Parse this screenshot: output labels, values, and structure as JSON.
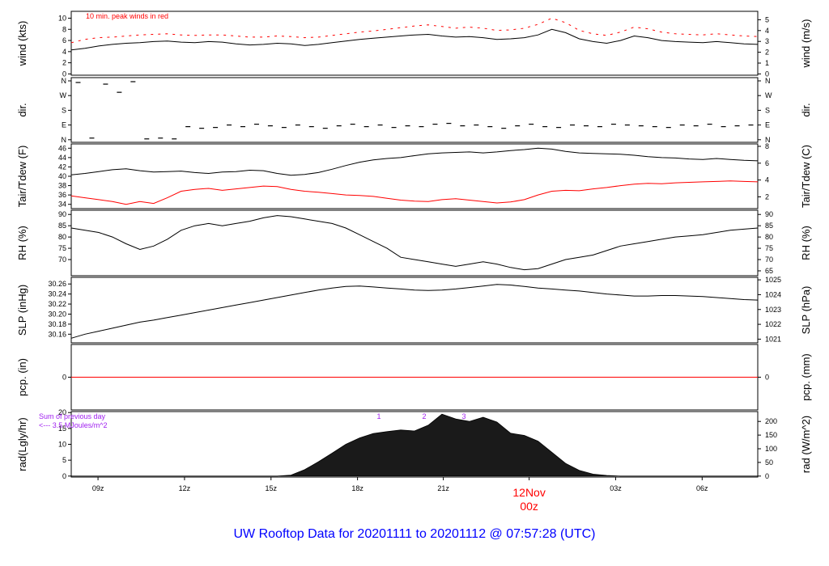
{
  "title": "UW Rooftop Data for 20201111  to  20201112 @ 07:57:28  (UTC)",
  "colors": {
    "axis": "#000000",
    "accent": "#ff0000",
    "note": "#a020f0",
    "title": "#0000ff"
  },
  "chart_data": {
    "type": "line",
    "x_axis": {
      "ticks": [
        "09z",
        "12z",
        "15z",
        "18z",
        "21z",
        "00z",
        "03z",
        "06z"
      ],
      "day_label": "12Nov",
      "day_time": "00z"
    },
    "panels": [
      {
        "id": "wind",
        "ylabel": "wind (kts)",
        "ylabel_right": "wind (m/s)",
        "ylim": [
          0,
          11
        ],
        "left_ticks": [
          "0",
          "2",
          "4",
          "6",
          "8",
          "10"
        ],
        "right_ticks": [
          "0",
          "1",
          "2",
          "3",
          "4",
          "5"
        ],
        "annotation": "10 min. peak winds in red",
        "series": [
          {
            "values": [
              4.3,
              4.6,
              5.0,
              5.3,
              5.5,
              5.6,
              5.8,
              5.9,
              5.7,
              5.6,
              5.8,
              5.7,
              5.4,
              5.2,
              5.3,
              5.5,
              5.4,
              5.1,
              5.3,
              5.6,
              5.9,
              6.2,
              6.4,
              6.6,
              6.8,
              7.0,
              7.1,
              6.8,
              6.6,
              6.7,
              6.5,
              6.2,
              6.3,
              6.5,
              7.0,
              8.0,
              7.4,
              6.3,
              5.8,
              5.5,
              6.0,
              6.8,
              6.5,
              6.0,
              5.8,
              5.7,
              5.6,
              5.8,
              5.6,
              5.4,
              5.3
            ]
          },
          {
            "values": [
              5.6,
              6.2,
              6.5,
              6.6,
              6.8,
              7.0,
              7.1,
              7.2,
              7.0,
              6.9,
              7.0,
              7.0,
              6.8,
              6.6,
              6.6,
              6.8,
              6.7,
              6.5,
              6.6,
              6.9,
              7.2,
              7.5,
              7.7,
              8.0,
              8.3,
              8.6,
              8.8,
              8.5,
              8.2,
              8.4,
              8.2,
              7.8,
              7.9,
              8.2,
              8.9,
              10.0,
              9.2,
              7.8,
              7.2,
              6.9,
              7.5,
              8.4,
              8.1,
              7.5,
              7.2,
              7.1,
              7.0,
              7.2,
              7.0,
              6.8,
              6.7
            ]
          }
        ]
      },
      {
        "id": "dir",
        "ylabel": "dir.",
        "ylabel_right": "dir.",
        "ylim": [
          0,
          360
        ],
        "left_ticks": [
          "N",
          "E",
          "S",
          "W",
          "N"
        ],
        "right_ticks": [
          "N",
          "E",
          "S",
          "W",
          "N"
        ],
        "series": [
          {
            "values": [
              350,
              10,
              340,
              290,
              355,
              5,
              10,
              5,
              80,
              70,
              75,
              90,
              80,
              95,
              85,
              75,
              90,
              80,
              70,
              85,
              95,
              80,
              90,
              75,
              85,
              80,
              95,
              100,
              85,
              90,
              80,
              70,
              85,
              95,
              80,
              75,
              90,
              85,
              80,
              95,
              90,
              85,
              80,
              75,
              90,
              85,
              95,
              80,
              85,
              90
            ]
          }
        ]
      },
      {
        "id": "temp",
        "ylabel": "Tair/Tdew (F)",
        "ylabel_right": "Tair/Tdew (C)",
        "ylim": [
          33.5,
          46.5
        ],
        "left_ticks": [
          "34",
          "36",
          "38",
          "40",
          "42",
          "44",
          "46"
        ],
        "right_ticks": [
          "2",
          "4",
          "6",
          "8"
        ],
        "series": [
          {
            "values": [
              40.3,
              40.6,
              41.0,
              41.4,
              41.6,
              41.2,
              40.9,
              41.0,
              41.1,
              40.8,
              40.6,
              40.9,
              41.0,
              41.3,
              41.2,
              40.6,
              40.2,
              40.4,
              40.8,
              41.5,
              42.3,
              43.0,
              43.5,
              43.8,
              44.0,
              44.4,
              44.8,
              45.0,
              45.1,
              45.2,
              45.0,
              45.2,
              45.5,
              45.7,
              46.0,
              45.8,
              45.3,
              45.0,
              44.9,
              44.8,
              44.7,
              44.5,
              44.2,
              44.0,
              43.9,
              43.7,
              43.6,
              43.8,
              43.6,
              43.4,
              43.3
            ]
          },
          {
            "values": [
              35.8,
              35.4,
              35.0,
              34.6,
              34.0,
              34.6,
              34.2,
              35.4,
              36.8,
              37.2,
              37.4,
              37.0,
              37.3,
              37.6,
              37.9,
              37.8,
              37.2,
              36.8,
              36.6,
              36.3,
              36.0,
              35.9,
              35.7,
              35.3,
              34.9,
              34.7,
              34.6,
              35.0,
              35.2,
              34.9,
              34.6,
              34.3,
              34.5,
              35.0,
              36.0,
              36.8,
              37.0,
              36.9,
              37.3,
              37.6,
              38.0,
              38.3,
              38.5,
              38.4,
              38.6,
              38.7,
              38.8,
              38.9,
              39.0,
              38.9,
              38.8
            ]
          }
        ]
      },
      {
        "id": "rh",
        "ylabel": "RH (%)",
        "ylabel_right": "RH (%)",
        "ylim": [
          64,
          91
        ],
        "left_ticks": [
          "70",
          "75",
          "80",
          "85",
          "90"
        ],
        "right_ticks": [
          "65",
          "70",
          "75",
          "80",
          "85",
          "90"
        ],
        "series": [
          {
            "values": [
              84,
              83,
              82,
              80,
              77,
              74.5,
              76,
              79,
              83,
              85,
              86,
              85,
              86,
              87,
              88.5,
              89.5,
              89,
              88,
              87,
              86,
              84,
              81,
              78,
              75,
              71,
              70,
              69,
              68,
              67,
              68,
              69,
              68,
              66.5,
              65.5,
              66,
              68,
              70,
              71,
              72,
              74,
              76,
              77,
              78,
              79,
              80,
              80.5,
              81,
              82,
              83,
              83.5,
              84
            ]
          }
        ]
      },
      {
        "id": "slp",
        "ylabel": "SLP (inHg)",
        "ylabel_right": "SLP (hPa)",
        "ylim": [
          30.148,
          30.268
        ],
        "left_ticks": [
          "30.16",
          "30.18",
          "30.20",
          "30.22",
          "30.24",
          "30.26"
        ],
        "right_ticks": [
          "1021",
          "1022",
          "1023",
          "1024",
          "1025"
        ],
        "series": [
          {
            "values": [
              30.152,
              30.16,
              30.166,
              30.172,
              30.178,
              30.184,
              30.188,
              30.193,
              30.198,
              30.203,
              30.208,
              30.213,
              30.218,
              30.223,
              30.228,
              30.233,
              30.238,
              30.243,
              30.248,
              30.252,
              30.255,
              30.256,
              30.254,
              30.252,
              30.25,
              30.248,
              30.247,
              30.248,
              30.25,
              30.253,
              30.256,
              30.259,
              30.258,
              30.255,
              30.252,
              30.25,
              30.248,
              30.246,
              30.243,
              30.24,
              30.238,
              30.236,
              30.236,
              30.237,
              30.237,
              30.236,
              30.235,
              30.233,
              30.231,
              30.229,
              30.228
            ]
          }
        ]
      },
      {
        "id": "pcp",
        "ylabel": "pcp. (in)",
        "ylabel_right": "pcp. (mm)",
        "ylim": [
          -1,
          1
        ],
        "left_ticks": [
          "0"
        ],
        "right_ticks": [
          "0"
        ],
        "series": [
          {
            "values": [
              0,
              0
            ]
          }
        ]
      },
      {
        "id": "rad",
        "type": "area",
        "ylabel": "rad(Lgly/hr)",
        "ylabel_right": "rad (W/m^2)",
        "ylim": [
          0,
          20
        ],
        "left_ticks": [
          "0",
          "5",
          "10",
          "15",
          "20"
        ],
        "right_ticks": [
          "0",
          "50",
          "100",
          "150",
          "200"
        ],
        "note_line1": "Sum of previous day",
        "note_line2": "<--- 3.5 MJoules/m^2",
        "markers": [
          "1",
          "2",
          "3"
        ],
        "series": [
          {
            "values": [
              0,
              0,
              0,
              0,
              0,
              0,
              0,
              0,
              0,
              0,
              0,
              0,
              0,
              0,
              0,
              0,
              0.3,
              2.0,
              4.5,
              7.2,
              10.0,
              12.0,
              13.4,
              14.0,
              14.5,
              14.2,
              16.0,
              19.5,
              18.0,
              17.2,
              18.5,
              17.0,
              13.5,
              12.8,
              11.0,
              7.5,
              4.0,
              1.8,
              0.6,
              0.2,
              0,
              0,
              0,
              0,
              0,
              0,
              0,
              0,
              0,
              0,
              0
            ]
          }
        ]
      }
    ]
  }
}
